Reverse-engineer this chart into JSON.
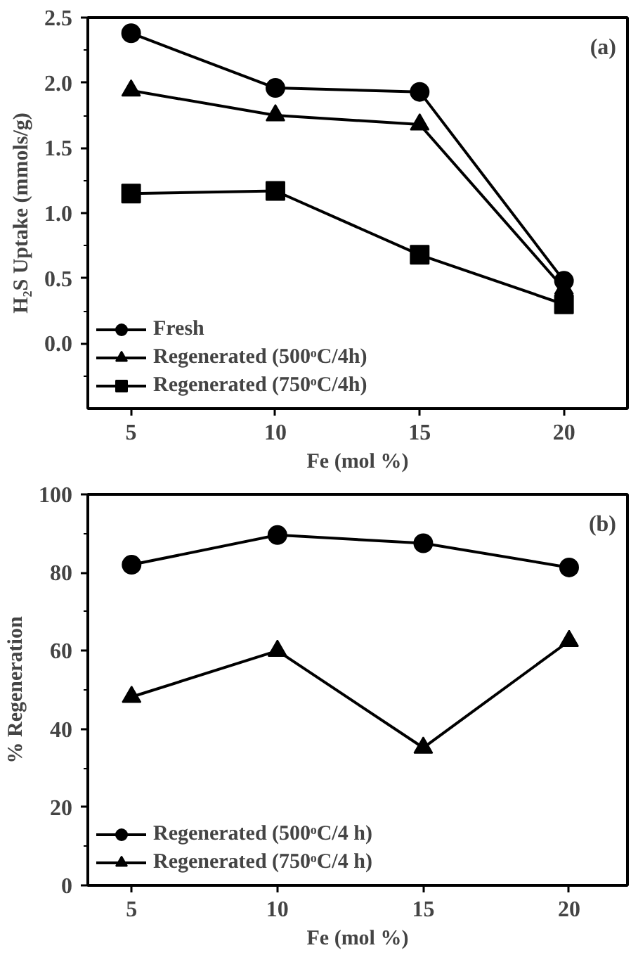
{
  "chart_data": [
    {
      "type": "line",
      "xlabel": "Fe (mol %)",
      "ylabel": "H₂S Uptake (mmols/g)",
      "x": [
        5,
        10,
        15,
        20
      ],
      "xlim": [
        3.5,
        22.2
      ],
      "xticks": [
        5,
        10,
        15,
        20
      ],
      "ylim": [
        -0.5,
        2.5
      ],
      "yticks": [
        {
          "value": -0.25,
          "label": null
        },
        {
          "value": 0,
          "label": "0.0"
        },
        {
          "value": 0.25,
          "label": null
        },
        {
          "value": 0.5,
          "label": "0.5"
        },
        {
          "value": 0.75,
          "label": null
        },
        {
          "value": 1,
          "label": "1.0"
        },
        {
          "value": 1.25,
          "label": null
        },
        {
          "value": 1.5,
          "label": "1.5"
        },
        {
          "value": 1.75,
          "label": null
        },
        {
          "value": 2,
          "label": "2.0"
        },
        {
          "value": 2.25,
          "label": null
        },
        {
          "value": 2.5,
          "label": "2.5"
        }
      ],
      "grid": false,
      "legend": "bottom left",
      "annotations": [
        "(a)"
      ],
      "series": [
        {
          "name": "Fresh",
          "color": "#000000",
          "marker": "circle",
          "values": [
            2.38,
            1.96,
            1.93,
            0.48
          ]
        },
        {
          "name": "Regenerated (500ᵒC/4h)",
          "color": "#000000",
          "marker": "triangle",
          "values": [
            1.94,
            1.75,
            1.68,
            0.42
          ]
        },
        {
          "name": "Regenerated (750ᵒC/4h)",
          "color": "#000000",
          "marker": "square",
          "values": [
            1.15,
            1.17,
            0.68,
            0.3
          ]
        }
      ]
    },
    {
      "type": "line",
      "xlabel": "Fe (mol %)",
      "ylabel": "% Regeneration",
      "x": [
        5,
        10,
        15,
        20
      ],
      "xlim": [
        3.5,
        22
      ],
      "xticks": [
        5,
        10,
        15,
        20
      ],
      "ylim": [
        0,
        100
      ],
      "yticks": [
        0,
        {
          "value": 10,
          "label": null
        },
        20,
        {
          "value": 30,
          "label": null
        },
        40,
        {
          "value": 50,
          "label": null
        },
        60,
        {
          "value": 70,
          "label": null
        },
        80,
        {
          "value": 90,
          "label": null
        },
        100
      ],
      "grid": false,
      "legend": "bottom left",
      "annotations": [
        "(b)"
      ],
      "series": [
        {
          "name": "Regenerated (500ᵒC/4 h)",
          "color": "#000000",
          "marker": "circle",
          "values": [
            82,
            89.6,
            87.5,
            81.3
          ]
        },
        {
          "name": "Regenerated (750ᵒC/4 h)",
          "color": "#000000",
          "marker": "triangle",
          "values": [
            48.2,
            60,
            35.2,
            62.5
          ]
        }
      ]
    }
  ]
}
